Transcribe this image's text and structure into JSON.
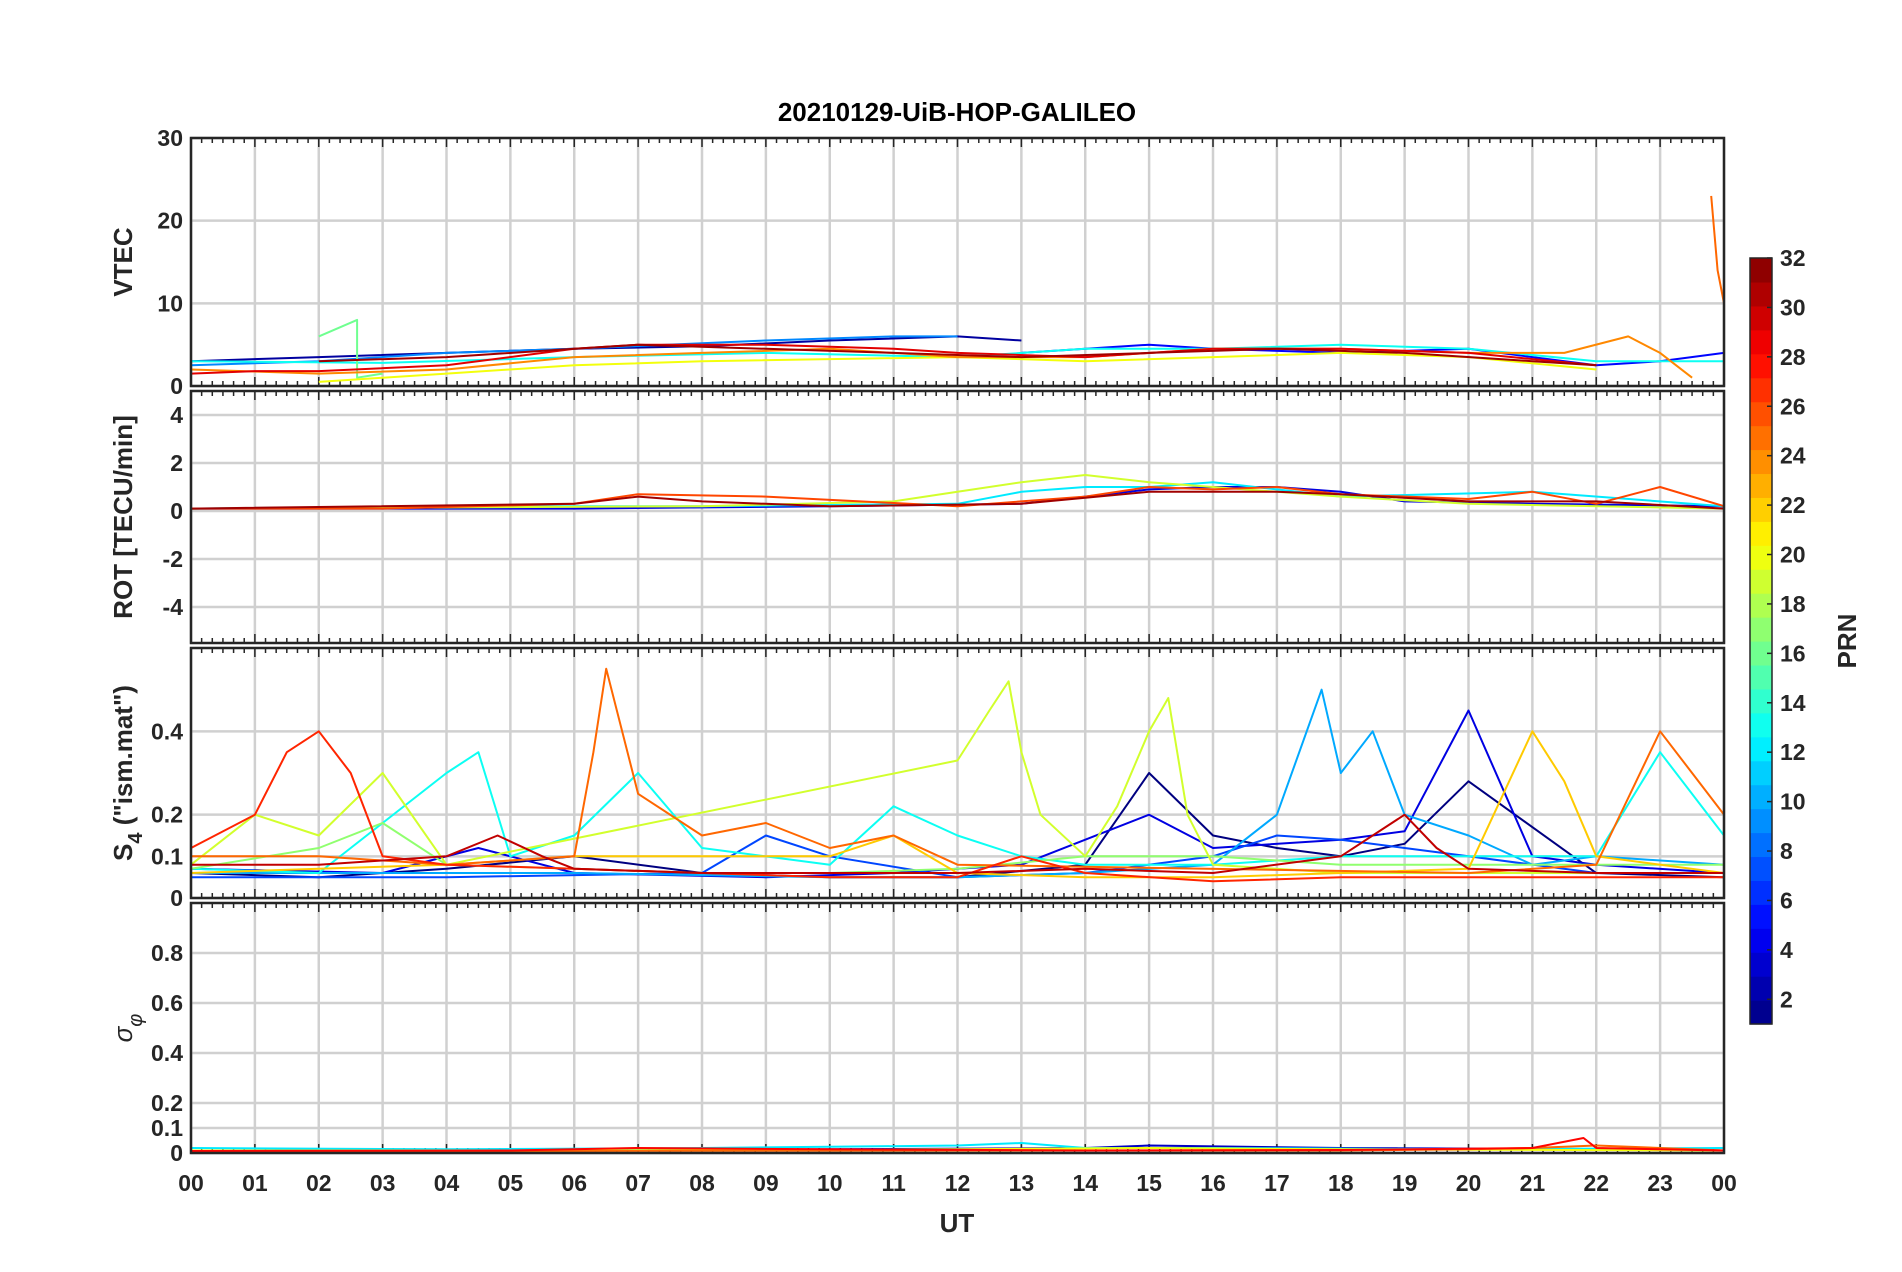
{
  "chart_data": {
    "type": "line",
    "title": "20210129-UiB-HOP-GALILEO",
    "xlabel": "UT",
    "x_ticks": [
      "00",
      "01",
      "02",
      "03",
      "04",
      "05",
      "06",
      "07",
      "08",
      "09",
      "10",
      "11",
      "12",
      "13",
      "14",
      "15",
      "16",
      "17",
      "18",
      "19",
      "20",
      "21",
      "22",
      "23",
      "00"
    ],
    "xlim": [
      0,
      24
    ],
    "grid": true,
    "colorbar": {
      "label": "PRN",
      "colormap": "jet",
      "range": [
        1,
        32
      ],
      "ticks": [
        "2",
        "4",
        "6",
        "8",
        "10",
        "12",
        "14",
        "16",
        "18",
        "20",
        "22",
        "24",
        "26",
        "28",
        "30",
        "32"
      ]
    },
    "panels": [
      {
        "id": "vtec",
        "ylabel": "VTEC",
        "ylim": [
          0,
          30
        ],
        "y_ticks": [
          "0",
          "10",
          "20",
          "30"
        ],
        "series": [
          {
            "prn": 2,
            "x": [
              0,
              2,
              4,
              6,
              8,
              10,
              12,
              13
            ],
            "y": [
              3,
              3.5,
              4,
              4.5,
              4.8,
              5.5,
              6,
              5.5
            ]
          },
          {
            "prn": 5,
            "x": [
              13,
              15,
              16,
              18,
              20,
              21,
              22,
              23,
              24
            ],
            "y": [
              4,
              5,
              4.5,
              4,
              4.5,
              3.5,
              2.5,
              3,
              4
            ]
          },
          {
            "prn": 9,
            "x": [
              0,
              2,
              4,
              6,
              9,
              11,
              12
            ],
            "y": [
              2.5,
              3,
              4,
              4.5,
              5.5,
              6,
              6
            ]
          },
          {
            "prn": 13,
            "x": [
              0,
              3,
              6,
              9,
              12,
              14,
              16,
              18,
              20,
              22,
              24
            ],
            "y": [
              3,
              2.8,
              3.5,
              4,
              3.5,
              4.5,
              4.5,
              5,
              4.5,
              3,
              3
            ]
          },
          {
            "prn": 16,
            "x": [
              2,
              2.6,
              2.6,
              3
            ],
            "y": [
              6,
              8,
              1,
              1.5
            ]
          },
          {
            "prn": 20,
            "x": [
              2,
              3,
              4,
              6,
              8,
              12,
              14,
              16,
              18,
              20,
              22
            ],
            "y": [
              0.5,
              1,
              1.5,
              2.5,
              3,
              3.5,
              3,
              3.5,
              4,
              3.5,
              2
            ]
          },
          {
            "prn": 24,
            "x": [
              0,
              2,
              4,
              6,
              8,
              10,
              12,
              14,
              16,
              18,
              20,
              21.5,
              22.5,
              23,
              23.5
            ],
            "y": [
              2,
              1.5,
              2,
              3.5,
              4,
              4.5,
              3.5,
              3.5,
              4.5,
              4.5,
              4,
              4,
              6,
              4,
              1
            ]
          },
          {
            "prn": 25,
            "x": [
              23.8,
              23.9,
              24
            ],
            "y": [
              23,
              14,
              10
            ]
          },
          {
            "prn": 29,
            "x": [
              0,
              1,
              2,
              4,
              6,
              7,
              9,
              11,
              12,
              14,
              16,
              18,
              20,
              22
            ],
            "y": [
              1.5,
              1.8,
              1.8,
              2.5,
              4.5,
              5,
              5,
              4.5,
              4,
              3.5,
              4.5,
              4.5,
              4,
              2.5
            ]
          },
          {
            "prn": 31,
            "x": [
              2,
              4,
              6,
              7,
              9,
              11,
              13,
              15,
              17,
              19,
              21,
              22
            ],
            "y": [
              3,
              3.5,
              4.5,
              5,
              4.5,
              4,
              3.5,
              4,
              4.5,
              4,
              3,
              2.5
            ]
          }
        ]
      },
      {
        "id": "rot",
        "ylabel": "ROT [TECU/min]",
        "ylim": [
          -5.5,
          5
        ],
        "y_ticks": [
          "-4",
          "-2",
          "0",
          "2",
          "4"
        ],
        "series": [
          {
            "prn": 4,
            "x": [
              0,
              6,
              10,
              13,
              14,
              15,
              16,
              17,
              18,
              19,
              21,
              24
            ],
            "y": [
              0.1,
              0.1,
              0.2,
              0.3,
              0.6,
              0.9,
              1,
              1,
              0.8,
              0.4,
              0.3,
              0.2
            ]
          },
          {
            "prn": 12,
            "x": [
              0,
              4,
              8,
              12,
              13,
              14,
              15,
              16,
              18,
              21,
              24
            ],
            "y": [
              0.1,
              0.2,
              0.2,
              0.3,
              0.8,
              1,
              1,
              1.2,
              0.6,
              0.8,
              0.2
            ]
          },
          {
            "prn": 19,
            "x": [
              0,
              8,
              11,
              12,
              13,
              14,
              15,
              16,
              18,
              20,
              24
            ],
            "y": [
              0.1,
              0.2,
              0.4,
              0.8,
              1.2,
              1.5,
              1.2,
              1,
              0.6,
              0.3,
              0.1
            ]
          },
          {
            "prn": 26,
            "x": [
              0,
              3,
              6,
              7,
              9,
              12,
              14,
              15,
              16,
              17,
              18,
              20,
              21,
              22,
              23,
              24
            ],
            "y": [
              0.1,
              0.1,
              0.3,
              0.7,
              0.6,
              0.2,
              0.6,
              1,
              0.9,
              1,
              0.7,
              0.5,
              0.8,
              0.3,
              1,
              0.2
            ]
          },
          {
            "prn": 31,
            "x": [
              0,
              6,
              7,
              8,
              10,
              13,
              15,
              17,
              18,
              20,
              22,
              24
            ],
            "y": [
              0.1,
              0.3,
              0.6,
              0.4,
              0.2,
              0.3,
              0.8,
              0.8,
              0.7,
              0.4,
              0.4,
              0.1
            ]
          }
        ]
      },
      {
        "id": "s4",
        "ylabel": "S4 (\"ism.mat\")",
        "ylim": [
          0,
          0.6
        ],
        "y_ticks": [
          "0",
          "0.1",
          "0.2",
          "0.4"
        ],
        "series": [
          {
            "prn": 1,
            "x": [
              0,
              2,
              4,
              6,
              8,
              10,
              12,
              14,
              15,
              16,
              17,
              18,
              19,
              20,
              22,
              24
            ],
            "y": [
              0.06,
              0.05,
              0.07,
              0.1,
              0.06,
              0.05,
              0.05,
              0.08,
              0.3,
              0.15,
              0.12,
              0.1,
              0.13,
              0.28,
              0.06,
              0.05
            ]
          },
          {
            "prn": 4,
            "x": [
              0,
              3,
              4.5,
              5,
              6,
              9,
              11,
              12,
              13,
              15,
              16,
              18,
              19,
              20,
              21,
              22,
              24
            ],
            "y": [
              0.07,
              0.06,
              0.12,
              0.1,
              0.06,
              0.05,
              0.06,
              0.07,
              0.08,
              0.2,
              0.12,
              0.14,
              0.16,
              0.45,
              0.1,
              0.08,
              0.06
            ]
          },
          {
            "prn": 7,
            "x": [
              0,
              4,
              8,
              9,
              10,
              12,
              14,
              16,
              17,
              18,
              19,
              20,
              22,
              24
            ],
            "y": [
              0.05,
              0.05,
              0.06,
              0.15,
              0.1,
              0.05,
              0.06,
              0.1,
              0.15,
              0.14,
              0.12,
              0.1,
              0.06,
              0.06
            ]
          },
          {
            "prn": 10,
            "x": [
              0,
              6,
              10,
              12,
              14,
              16,
              17,
              17.7,
              18,
              18.5,
              19,
              20,
              21,
              22,
              24
            ],
            "y": [
              0.06,
              0.06,
              0.05,
              0.05,
              0.06,
              0.08,
              0.2,
              0.5,
              0.3,
              0.4,
              0.2,
              0.15,
              0.08,
              0.1,
              0.08
            ]
          },
          {
            "prn": 13,
            "x": [
              0,
              2,
              4,
              4.5,
              5,
              6,
              7,
              8,
              10,
              11,
              12,
              13,
              14,
              16,
              18,
              20,
              22,
              23,
              24
            ],
            "y": [
              0.07,
              0.06,
              0.3,
              0.35,
              0.1,
              0.15,
              0.3,
              0.12,
              0.08,
              0.22,
              0.15,
              0.1,
              0.08,
              0.08,
              0.1,
              0.1,
              0.1,
              0.35,
              0.15
            ]
          },
          {
            "prn": 17,
            "x": [
              0,
              2,
              3,
              4,
              6,
              8,
              10,
              12,
              14,
              16,
              18,
              20,
              24
            ],
            "y": [
              0.07,
              0.12,
              0.18,
              0.08,
              0.07,
              0.06,
              0.06,
              0.07,
              0.1,
              0.1,
              0.08,
              0.08,
              0.08
            ]
          },
          {
            "prn": 19,
            "x": [
              0,
              1,
              2,
              3,
              4,
              12,
              12.5,
              12.8,
              13,
              13.3,
              14,
              14.5,
              15,
              15.3,
              15.6,
              16,
              18,
              20,
              24
            ],
            "y": [
              0.08,
              0.2,
              0.15,
              0.3,
              0.08,
              0.33,
              0.45,
              0.52,
              0.35,
              0.2,
              0.1,
              0.22,
              0.4,
              0.48,
              0.2,
              0.08,
              0.06,
              0.06,
              0.06
            ]
          },
          {
            "prn": 22,
            "x": [
              0,
              2,
              4,
              6,
              8,
              10,
              11,
              12,
              14,
              16,
              18,
              20,
              21,
              21.5,
              22,
              24
            ],
            "y": [
              0.06,
              0.07,
              0.08,
              0.1,
              0.1,
              0.1,
              0.15,
              0.06,
              0.05,
              0.05,
              0.06,
              0.07,
              0.4,
              0.28,
              0.1,
              0.06
            ]
          },
          {
            "prn": 25,
            "x": [
              0,
              2,
              4,
              6,
              6.3,
              6.5,
              7,
              8,
              9,
              10,
              11,
              12,
              20,
              22,
              23,
              23.5,
              24
            ],
            "y": [
              0.1,
              0.1,
              0.08,
              0.1,
              0.35,
              0.55,
              0.25,
              0.15,
              0.18,
              0.12,
              0.15,
              0.08,
              0.06,
              0.08,
              0.4,
              0.3,
              0.2
            ]
          },
          {
            "prn": 27,
            "x": [
              0,
              1,
              1.5,
              2,
              2.5,
              3,
              4,
              6,
              8,
              10,
              12,
              13,
              14,
              16,
              18,
              20,
              22,
              24
            ],
            "y": [
              0.12,
              0.2,
              0.35,
              0.4,
              0.3,
              0.1,
              0.08,
              0.07,
              0.06,
              0.05,
              0.05,
              0.1,
              0.06,
              0.04,
              0.05,
              0.05,
              0.05,
              0.05
            ]
          },
          {
            "prn": 30,
            "x": [
              0,
              2,
              4,
              4.8,
              5.5,
              6,
              8,
              10,
              12,
              14,
              16,
              18,
              19,
              19.5,
              20,
              22,
              24
            ],
            "y": [
              0.08,
              0.08,
              0.1,
              0.15,
              0.1,
              0.07,
              0.06,
              0.06,
              0.06,
              0.07,
              0.06,
              0.1,
              0.2,
              0.12,
              0.07,
              0.06,
              0.06
            ]
          }
        ]
      },
      {
        "id": "sigma_phi",
        "ylabel": "σφ",
        "ylim": [
          0,
          1
        ],
        "y_ticks": [
          "0",
          "0.1",
          "0.2",
          "0.4",
          "0.6",
          "0.8"
        ],
        "series": [
          {
            "prn": 3,
            "x": [
              0,
              6,
              10,
              14,
              15,
              18,
              22,
              24
            ],
            "y": [
              0.01,
              0.01,
              0.015,
              0.02,
              0.03,
              0.02,
              0.015,
              0.01
            ]
          },
          {
            "prn": 12,
            "x": [
              0,
              4,
              8,
              10,
              12,
              13,
              14,
              16,
              20,
              24
            ],
            "y": [
              0.02,
              0.015,
              0.02,
              0.025,
              0.03,
              0.04,
              0.02,
              0.02,
              0.015,
              0.02
            ]
          },
          {
            "prn": 20,
            "x": [
              0,
              6,
              12,
              15,
              18,
              24
            ],
            "y": [
              0.01,
              0.01,
              0.015,
              0.02,
              0.015,
              0.01
            ]
          },
          {
            "prn": 25,
            "x": [
              0,
              6,
              12,
              18,
              20,
              21,
              22,
              23,
              24
            ],
            "y": [
              0.005,
              0.008,
              0.01,
              0.01,
              0.015,
              0.02,
              0.03,
              0.02,
              0.01
            ]
          },
          {
            "prn": 28,
            "x": [
              0,
              5,
              7,
              10,
              14,
              18,
              21,
              21.8,
              22,
              24
            ],
            "y": [
              0.008,
              0.01,
              0.02,
              0.015,
              0.01,
              0.012,
              0.02,
              0.06,
              0.02,
              0.01
            ]
          }
        ]
      }
    ]
  }
}
